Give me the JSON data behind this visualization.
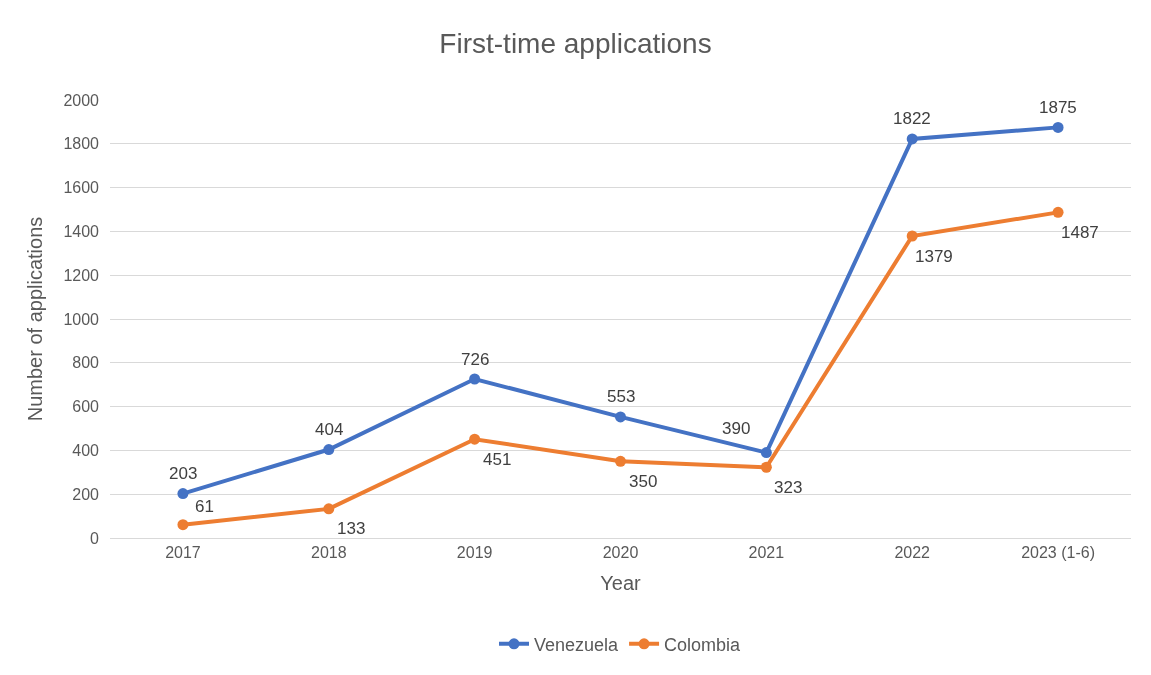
{
  "chart_data": {
    "type": "line",
    "title": "First-time applications",
    "xlabel": "Year",
    "ylabel": "Number of applications",
    "categories": [
      "2017",
      "2018",
      "2019",
      "2020",
      "2021",
      "2022",
      "2023 (1-6)"
    ],
    "series": [
      {
        "name": "Venezuela",
        "color": "#4472c4",
        "values": [
          203,
          404,
          726,
          553,
          390,
          1822,
          1875
        ]
      },
      {
        "name": "Colombia",
        "color": "#ed7d31",
        "values": [
          61,
          133,
          451,
          350,
          323,
          1379,
          1487
        ]
      }
    ],
    "ylim": [
      0,
      2000
    ],
    "yticks": [
      0,
      200,
      400,
      600,
      800,
      1000,
      1200,
      1400,
      1600,
      1800,
      2000
    ],
    "grid": "y",
    "legend": "bottom",
    "marker": "circle",
    "line_style": "solid",
    "data_labels": true
  }
}
